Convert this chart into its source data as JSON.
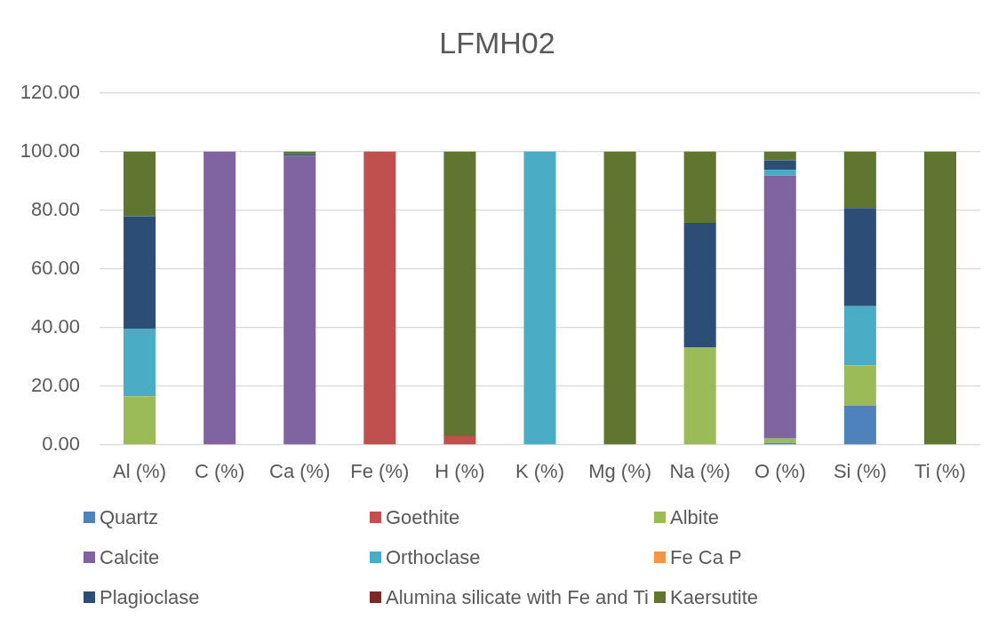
{
  "chart_data": {
    "type": "bar",
    "title": "LFMH02",
    "stacked": true,
    "grid": "y",
    "legend": "bottom",
    "categories": [
      "Al (%)",
      "C (%)",
      "Ca (%)",
      "Fe (%)",
      "H (%)",
      "K (%)",
      "Mg (%)",
      "Na (%)",
      "O (%)",
      "Si (%)",
      "Ti (%)"
    ],
    "ylim": [
      0,
      120
    ],
    "yticks": [
      {
        "value": 0,
        "label": "0.00"
      },
      {
        "value": 20,
        "label": "20.00"
      },
      {
        "value": 40,
        "label": "40.00"
      },
      {
        "value": 60,
        "label": "60.00"
      },
      {
        "value": 80,
        "label": "80.00"
      },
      {
        "value": 100,
        "label": "100.00"
      },
      {
        "value": 120,
        "label": "120.00"
      }
    ],
    "series": [
      {
        "name": "Quartz",
        "color": "#4f81bd",
        "values": [
          null,
          null,
          null,
          null,
          null,
          null,
          null,
          null,
          0.7,
          13.3,
          null
        ]
      },
      {
        "name": "Goethite",
        "color": "#c0504d",
        "values": [
          null,
          null,
          null,
          100,
          3.0,
          null,
          null,
          null,
          null,
          null,
          null
        ]
      },
      {
        "name": "Albite",
        "color": "#9bbb59",
        "values": [
          16.6,
          null,
          null,
          null,
          null,
          null,
          null,
          33.3,
          1.5,
          13.9,
          null
        ]
      },
      {
        "name": "Calcite",
        "color": "#8064a2",
        "values": [
          null,
          100,
          98.6,
          null,
          null,
          null,
          null,
          null,
          89.7,
          null,
          null
        ]
      },
      {
        "name": "Orthoclase",
        "color": "#4bacc6",
        "values": [
          23.1,
          null,
          null,
          null,
          null,
          100,
          null,
          null,
          2.0,
          20.1,
          null
        ]
      },
      {
        "name": "Fe Ca P",
        "color": "#f79646",
        "values": [
          null,
          null,
          null,
          null,
          null,
          null,
          null,
          null,
          null,
          null,
          null
        ]
      },
      {
        "name": "Plagioclase",
        "color": "#2c4d75",
        "values": [
          38.3,
          null,
          0.5,
          null,
          null,
          null,
          null,
          42.4,
          3.2,
          33.5,
          null
        ]
      },
      {
        "name": "Alumina silicate with Fe and Ti",
        "color": "#772c2a",
        "values": [
          null,
          null,
          null,
          null,
          null,
          null,
          null,
          null,
          null,
          null,
          null
        ]
      },
      {
        "name": "Kaersutite",
        "color": "#5f7530",
        "values": [
          22.0,
          null,
          0.9,
          null,
          97.0,
          null,
          100,
          24.3,
          2.9,
          19.2,
          100
        ]
      }
    ]
  }
}
